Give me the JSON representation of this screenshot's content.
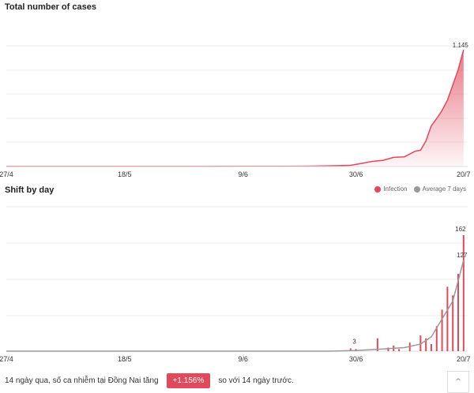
{
  "chart_data": [
    {
      "type": "area",
      "title": "Total number of cases",
      "x_ticks": [
        "27/4",
        "18/5",
        "9/6",
        "30/6",
        "20/7"
      ],
      "x": [
        "27/4",
        "4/5",
        "11/5",
        "18/5",
        "25/5",
        "1/6",
        "9/6",
        "16/6",
        "22/6",
        "26/6",
        "29/6",
        "1/7",
        "3/7",
        "5/7",
        "7/7",
        "9/7",
        "11/7",
        "12/7",
        "13/7",
        "14/7",
        "15/7",
        "16/7",
        "17/7",
        "18/7",
        "19/7",
        "20/7"
      ],
      "values": [
        1,
        1,
        1,
        1,
        1,
        1,
        2,
        2,
        4,
        8,
        12,
        30,
        50,
        60,
        90,
        95,
        150,
        160,
        250,
        400,
        470,
        550,
        650,
        800,
        950,
        1145
      ],
      "annotation": "1.145",
      "color": "#e2495a",
      "ylim": [
        0,
        1200
      ],
      "grid": true
    },
    {
      "type": "bar",
      "title": "Shift by day",
      "legend": [
        "Infection",
        "Average 7 days"
      ],
      "legend_colors": [
        "#e2495a",
        "#999999"
      ],
      "x_ticks": [
        "27/4",
        "18/5",
        "9/6",
        "30/6",
        "20/7"
      ],
      "series": [
        {
          "name": "Infection",
          "x": [
            "29/6",
            "30/6",
            "4/7",
            "6/7",
            "7/7",
            "8/7",
            "10/7",
            "12/7",
            "13/7",
            "14/7",
            "15/7",
            "16/7",
            "17/7",
            "18/7",
            "19/7",
            "20/7"
          ],
          "values": [
            4,
            3,
            18,
            5,
            8,
            3,
            12,
            22,
            18,
            10,
            35,
            58,
            90,
            78,
            108,
            162
          ]
        },
        {
          "name": "Average 7 days",
          "x": [
            "27/4",
            "25/6",
            "30/6",
            "5/7",
            "9/7",
            "12/7",
            "14/7",
            "16/7",
            "18/7",
            "20/7"
          ],
          "values": [
            0,
            0,
            1,
            3,
            5,
            10,
            20,
            45,
            70,
            127
          ]
        }
      ],
      "annotations": [
        "3",
        "162",
        "127"
      ],
      "ylim": [
        0,
        180
      ],
      "grid": true
    }
  ],
  "footer": {
    "text_before": "14 ngày qua, số ca nhiễm tại Đồng Nai tăng",
    "badge": "+1.156%",
    "text_after": "so với 14 ngày trước."
  },
  "scroll_top_icon": "chevron-up-icon"
}
